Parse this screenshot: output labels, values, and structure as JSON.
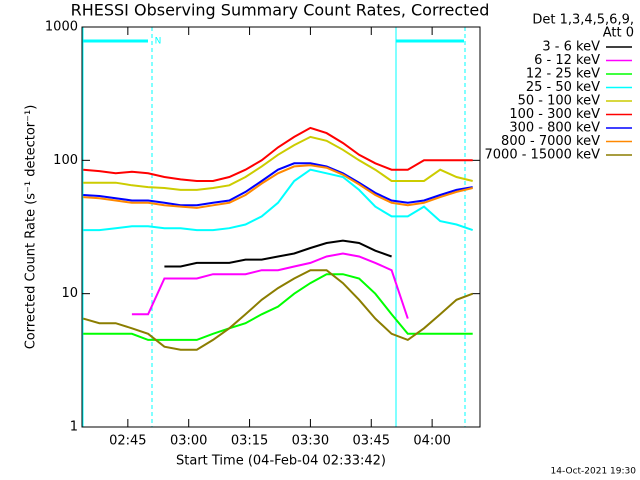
{
  "chart_data": {
    "type": "line",
    "title": "RHESSI Observing Summary Count Rates, Corrected",
    "x_label": "Start Time (04-Feb-04 02:33:42)",
    "y_label": "Corrected Count Rate (s⁻¹ detector⁻¹)",
    "legend_header": [
      "Det 1,3,4,5,6,9,",
      "Att 0"
    ],
    "footer": "14-Oct-2021 19:30",
    "annotation": "N",
    "log_y": true,
    "xlim": [
      153.7,
      251.8
    ],
    "xticks": [
      {
        "value": 165,
        "label": "02:45"
      },
      {
        "value": 180,
        "label": "03:00"
      },
      {
        "value": 195,
        "label": "03:15"
      },
      {
        "value": 210,
        "label": "03:30"
      },
      {
        "value": 225,
        "label": "03:45"
      },
      {
        "value": 240,
        "label": "04:00"
      }
    ],
    "ylim": [
      1,
      1000
    ],
    "yticks": [
      1,
      10,
      100,
      1000
    ],
    "x": [
      154,
      158,
      162,
      166,
      170,
      174,
      178,
      182,
      186,
      190,
      194,
      198,
      202,
      206,
      210,
      214,
      218,
      222,
      226,
      230,
      234,
      238,
      242,
      246,
      250
    ],
    "series": [
      {
        "name": "3 - 6 keV",
        "color": "#000000",
        "values": [
          null,
          null,
          null,
          null,
          null,
          16,
          16,
          17,
          17,
          17,
          18,
          18,
          19,
          20,
          22,
          24,
          25,
          24,
          21,
          19,
          null,
          null,
          null,
          null,
          null
        ]
      },
      {
        "name": "6 - 12 keV",
        "color": "#ff00ff",
        "values": [
          null,
          null,
          null,
          7,
          7,
          13,
          13,
          13,
          14,
          14,
          14,
          15,
          15,
          16,
          17,
          19,
          20,
          19,
          17,
          15,
          6.5,
          null,
          null,
          null,
          null
        ]
      },
      {
        "name": "12 - 25 keV",
        "color": "#00ff00",
        "values": [
          5,
          5,
          5,
          5,
          4.5,
          4.5,
          4.5,
          4.5,
          5,
          5.5,
          6,
          7,
          8,
          10,
          12,
          14,
          14,
          13,
          10,
          7,
          5,
          5,
          5,
          5,
          5
        ]
      },
      {
        "name": "25 - 50 keV",
        "color": "#00ffff",
        "values": [
          30,
          30,
          31,
          32,
          32,
          31,
          31,
          30,
          30,
          31,
          33,
          38,
          48,
          70,
          85,
          80,
          75,
          60,
          45,
          38,
          38,
          45,
          35,
          33,
          30
        ]
      },
      {
        "name": "50 - 100 keV",
        "color": "#cccc00",
        "values": [
          68,
          68,
          68,
          65,
          63,
          62,
          60,
          60,
          62,
          65,
          75,
          90,
          110,
          130,
          150,
          140,
          120,
          100,
          85,
          70,
          70,
          70,
          85,
          75,
          70
        ]
      },
      {
        "name": "100 - 300 keV",
        "color": "#ff0000",
        "values": [
          85,
          83,
          80,
          82,
          80,
          75,
          72,
          70,
          70,
          75,
          85,
          100,
          125,
          150,
          175,
          160,
          135,
          110,
          95,
          85,
          85,
          100,
          100,
          100,
          100
        ]
      },
      {
        "name": "300 - 800 keV",
        "color": "#0000ff",
        "values": [
          55,
          54,
          52,
          50,
          50,
          48,
          46,
          46,
          48,
          50,
          58,
          70,
          85,
          95,
          95,
          90,
          80,
          68,
          57,
          50,
          48,
          50,
          55,
          60,
          63
        ]
      },
      {
        "name": "800 - 7000 keV",
        "color": "#ff8800",
        "values": [
          53,
          52,
          50,
          48,
          48,
          46,
          45,
          44,
          46,
          48,
          55,
          67,
          80,
          90,
          92,
          88,
          78,
          66,
          55,
          48,
          46,
          48,
          53,
          58,
          62
        ]
      },
      {
        "name": "7000 - 15000 keV",
        "color": "#8b7d00",
        "values": [
          6.5,
          6,
          6,
          5.5,
          5,
          4,
          3.8,
          3.8,
          4.5,
          5.5,
          7,
          9,
          11,
          13,
          15,
          15,
          12,
          9,
          6.5,
          5,
          4.5,
          5.5,
          7,
          9,
          10
        ]
      }
    ]
  }
}
